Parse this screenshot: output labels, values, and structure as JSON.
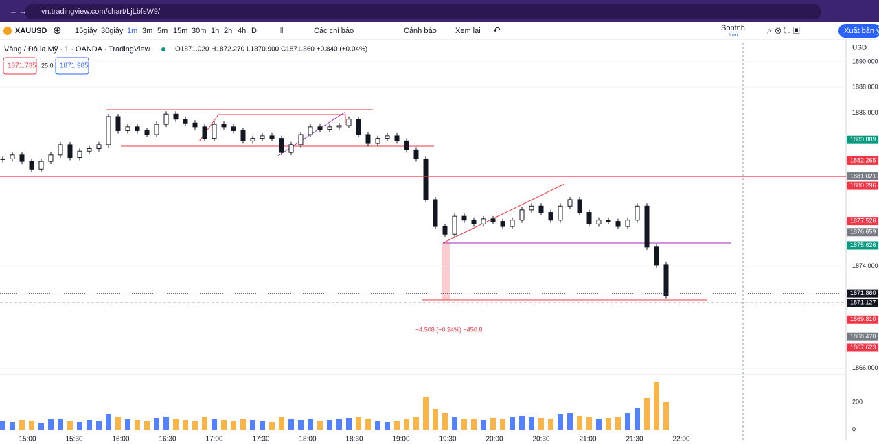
{
  "browser": {
    "url": "vn.tradingview.com/chart/LjLbfsW9/"
  },
  "toolbar": {
    "symbol": "XAUUSD",
    "intervals": [
      "15giây",
      "30giây",
      "1m",
      "3m",
      "5m",
      "15m",
      "30m",
      "1h",
      "2h",
      "4h",
      "D"
    ],
    "indicators": "Các chỉ báo",
    "alerts": "Cảnh báo",
    "replay": "Xem lại",
    "user": "Sontnh",
    "save": "Lưu",
    "publish": "Xuất bản ý"
  },
  "legend": {
    "title": "Vàng / Đô la Mỹ · 1 · OANDA · TradingView",
    "ohlc": "O1871.020 H1872.270 L1870.900 C1871.860 +0.840 (+0.04%)",
    "bid": "1871.735",
    "spread": "25.0",
    "ask": "1871.985"
  },
  "chart": {
    "currency": "USD",
    "ylim": [
      1865.5,
      1891.5
    ],
    "yticks": [
      {
        "value": 1890,
        "label": "1890.000"
      },
      {
        "value": 1888,
        "label": "1888.000"
      },
      {
        "value": 1886,
        "label": "1886.000"
      },
      {
        "value": 1874,
        "label": "1874.000"
      },
      {
        "value": 1866,
        "label": "1866.000"
      }
    ],
    "closes": [
      1882.4,
      1882.7,
      1882.2,
      1881.6,
      1882.2,
      1882.7,
      1883.5,
      1882.5,
      1883,
      1883.2,
      1883.5,
      1885.7,
      1884.6,
      1884.9,
      1884.6,
      1884.3,
      1885.1,
      1885.9,
      1885.5,
      1885.2,
      1884.9,
      1884,
      1885.1,
      1884.9,
      1884.6,
      1883.8,
      1884,
      1884.2,
      1884,
      1882.9,
      1883.5,
      1884.3,
      1884.9,
      1884.7,
      1884.9,
      1885,
      1885.5,
      1884.3,
      1883.6,
      1884,
      1884.2,
      1883.8,
      1883.1,
      1882.4,
      1879.2,
      1877.1,
      1876.5,
      1877.9,
      1877.6,
      1877.3,
      1877.7,
      1877.5,
      1877.1,
      1877.6,
      1878.4,
      1878.7,
      1878.2,
      1877.6,
      1878.7,
      1879.2,
      1878.2,
      1877.3,
      1877.6,
      1877.5,
      1877.1,
      1877.6,
      1878.7,
      1875.5,
      1874.1,
      1871.7
    ],
    "volumes": [
      60,
      55,
      70,
      65,
      50,
      75,
      80,
      60,
      55,
      70,
      65,
      110,
      90,
      75,
      70,
      60,
      85,
      95,
      80,
      70,
      65,
      90,
      75,
      70,
      65,
      80,
      70,
      60,
      55,
      90,
      75,
      70,
      80,
      65,
      70,
      75,
      85,
      90,
      75,
      60,
      55,
      65,
      80,
      90,
      240,
      150,
      120,
      90,
      80,
      75,
      70,
      85,
      80,
      90,
      100,
      95,
      85,
      80,
      110,
      120,
      100,
      90,
      80,
      85,
      90,
      120,
      160,
      230,
      350,
      200
    ],
    "up_color": "#2962ff",
    "down_color": "#f7a21b",
    "vlim": [
      0,
      400
    ],
    "vticks": [
      0,
      200
    ],
    "price_labels": [
      {
        "value": 1883.889,
        "label": "1883.889",
        "color": "#089981"
      },
      {
        "value": 1882.265,
        "label": "1882.265",
        "color": "#f23645"
      },
      {
        "value": 1881.021,
        "label": "1881.021",
        "color": "#787b86"
      },
      {
        "value": 1880.296,
        "label": "1880.296",
        "color": "#f23645"
      },
      {
        "value": 1877.526,
        "label": "1877.526",
        "color": "#f23645"
      },
      {
        "value": 1876.659,
        "label": "1876.659",
        "color": "#787b86"
      },
      {
        "value": 1875.626,
        "label": "1875.626",
        "color": "#089981"
      },
      {
        "value": 1871.86,
        "label": "1871.860",
        "color": "#131722"
      },
      {
        "value": 1871.127,
        "label": "1871.127",
        "color": "#131722"
      },
      {
        "value": 1869.81,
        "label": "1869.810",
        "color": "#f23645"
      },
      {
        "value": 1868.47,
        "label": "1868.470",
        "color": "#787b86"
      },
      {
        "value": 1867.623,
        "label": "1867.623",
        "color": "#f23645"
      }
    ],
    "times": [
      "15:00",
      "15:30",
      "16:00",
      "16:30",
      "17:00",
      "17:30",
      "18:00",
      "18:30",
      "19:00",
      "19:30",
      "20:00",
      "20:30",
      "21:00",
      "21:30",
      "22:00"
    ],
    "measure": "−4.508 (−0.24%) −450.8"
  }
}
